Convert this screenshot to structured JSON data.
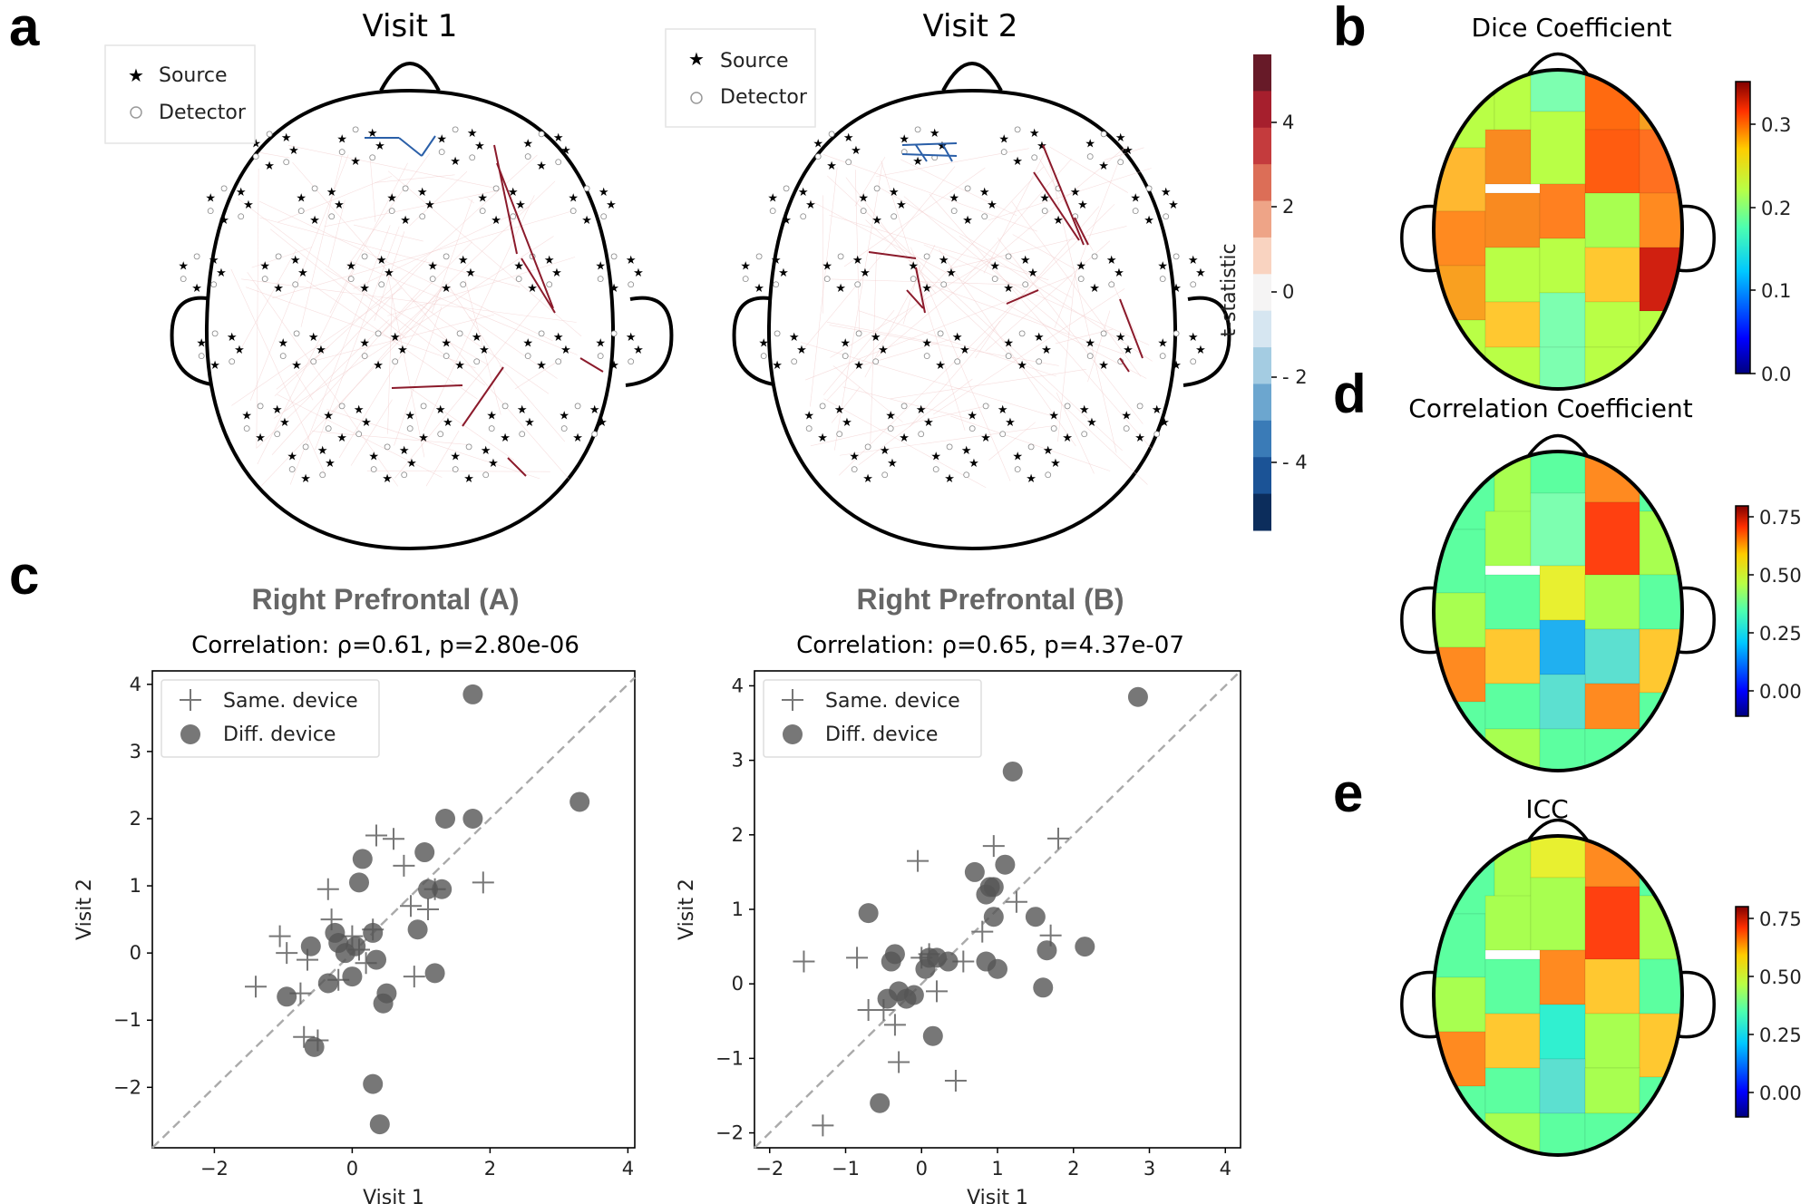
{
  "panels": {
    "a": {
      "letter": "a",
      "visit1_title": "Visit 1",
      "visit2_title": "Visit 2",
      "legend_source": "Source",
      "legend_detector": "Detector",
      "colorbar": {
        "label": "t-statistic",
        "ticks": [
          "4",
          "2",
          "0",
          "- 2",
          "- 4"
        ],
        "colors": [
          "#671a28",
          "#a61f2d",
          "#c43b3d",
          "#dc6e57",
          "#eea487",
          "#f9d3c0",
          "#f5f4f4",
          "#d6e6f1",
          "#a4cce2",
          "#6ca6cf",
          "#3a7bb7",
          "#1b5396",
          "#0c2d5c"
        ]
      }
    },
    "b": {
      "letter": "b",
      "title": "Dice Coefficient",
      "cb_ticks": [
        "0.3",
        "0.2",
        "0.1",
        "0.0"
      ]
    },
    "d": {
      "letter": "d",
      "title": "Correlation Coefficient",
      "cb_ticks": [
        "0.75",
        "0.50",
        "0.25",
        "0.00"
      ]
    },
    "e": {
      "letter": "e",
      "title": "ICC",
      "cb_ticks": [
        "0.75",
        "0.50",
        "0.25",
        "0.00"
      ]
    },
    "c": {
      "letter": "c",
      "legend_same": "Same. device",
      "legend_diff": "Diff. device"
    }
  },
  "chart_data": [
    {
      "type": "scatter",
      "id": "rpA",
      "title": "Right Prefrontal (A)",
      "subtitle": "Correlation: ρ=0.61, p=2.80e-06",
      "xlabel": "Visit 1",
      "ylabel": "Visit 2",
      "xlim": [
        -2.9,
        4.1
      ],
      "ylim": [
        -2.9,
        4.2
      ],
      "xticks": [
        "−2",
        "0",
        "2",
        "4"
      ],
      "yticks": [
        "−2",
        "−1",
        "0",
        "1",
        "2",
        "3",
        "4"
      ],
      "series": [
        {
          "name": "Same. device",
          "marker": "plus",
          "points": [
            [
              -1.4,
              -0.5
            ],
            [
              -1.05,
              0.25
            ],
            [
              -0.95,
              0.0
            ],
            [
              -0.65,
              -0.1
            ],
            [
              -0.75,
              -0.6
            ],
            [
              -0.7,
              -1.25
            ],
            [
              -0.5,
              -1.3
            ],
            [
              -0.35,
              0.95
            ],
            [
              -0.3,
              0.5
            ],
            [
              -0.2,
              -0.4
            ],
            [
              0.0,
              0.25
            ],
            [
              0.1,
              0.05
            ],
            [
              0.3,
              0.35
            ],
            [
              0.35,
              1.75
            ],
            [
              0.6,
              1.7
            ],
            [
              0.75,
              1.3
            ],
            [
              0.85,
              0.7
            ],
            [
              0.9,
              -0.35
            ],
            [
              1.1,
              0.65
            ],
            [
              1.2,
              0.95
            ],
            [
              1.9,
              1.05
            ],
            [
              0.2,
              -0.15
            ]
          ]
        },
        {
          "name": "Diff. device",
          "marker": "circle",
          "points": [
            [
              -0.95,
              -0.65
            ],
            [
              -0.6,
              0.1
            ],
            [
              -0.55,
              -1.4
            ],
            [
              -0.35,
              -0.45
            ],
            [
              -0.25,
              0.3
            ],
            [
              -0.2,
              0.15
            ],
            [
              -0.1,
              0.0
            ],
            [
              0.0,
              -0.35
            ],
            [
              0.05,
              0.1
            ],
            [
              0.1,
              1.05
            ],
            [
              0.15,
              1.4
            ],
            [
              0.3,
              0.3
            ],
            [
              0.35,
              -0.1
            ],
            [
              0.45,
              -0.75
            ],
            [
              0.5,
              -0.6
            ],
            [
              0.3,
              -1.95
            ],
            [
              0.4,
              -2.55
            ],
            [
              0.95,
              0.35
            ],
            [
              1.05,
              1.5
            ],
            [
              1.1,
              0.95
            ],
            [
              1.3,
              0.95
            ],
            [
              1.35,
              2.0
            ],
            [
              1.2,
              -0.3
            ],
            [
              1.75,
              3.85
            ],
            [
              1.75,
              2.0
            ],
            [
              3.3,
              2.25
            ]
          ]
        }
      ]
    },
    {
      "type": "scatter",
      "id": "rpB",
      "title": "Right Prefrontal (B)",
      "subtitle": "Correlation: ρ=0.65, p=4.37e-07",
      "xlabel": "Visit 1",
      "ylabel": "Visit 2",
      "xlim": [
        -2.2,
        4.2
      ],
      "ylim": [
        -2.2,
        4.2
      ],
      "xticks": [
        "−2",
        "−1",
        "0",
        "1",
        "2",
        "3",
        "4"
      ],
      "yticks": [
        "−2",
        "−1",
        "0",
        "1",
        "2",
        "3",
        "4"
      ],
      "series": [
        {
          "name": "Same. device",
          "marker": "plus",
          "points": [
            [
              -1.55,
              0.3
            ],
            [
              -1.3,
              -1.9
            ],
            [
              -0.85,
              0.35
            ],
            [
              -0.7,
              -0.35
            ],
            [
              -0.5,
              -0.35
            ],
            [
              -0.35,
              -0.55
            ],
            [
              -0.3,
              -1.05
            ],
            [
              -0.05,
              1.65
            ],
            [
              0.0,
              0.35
            ],
            [
              0.1,
              0.4
            ],
            [
              0.2,
              -0.1
            ],
            [
              0.45,
              -1.3
            ],
            [
              0.8,
              0.7
            ],
            [
              0.95,
              1.85
            ],
            [
              1.25,
              1.1
            ],
            [
              1.7,
              0.65
            ],
            [
              1.8,
              1.95
            ],
            [
              0.55,
              0.3
            ]
          ]
        },
        {
          "name": "Diff. device",
          "marker": "circle",
          "points": [
            [
              -0.7,
              0.95
            ],
            [
              -0.55,
              -1.6
            ],
            [
              -0.45,
              -0.2
            ],
            [
              -0.4,
              0.3
            ],
            [
              -0.35,
              0.4
            ],
            [
              -0.3,
              -0.1
            ],
            [
              -0.2,
              -0.2
            ],
            [
              -0.1,
              -0.15
            ],
            [
              0.05,
              0.2
            ],
            [
              0.1,
              0.35
            ],
            [
              0.15,
              -0.7
            ],
            [
              0.2,
              0.35
            ],
            [
              0.35,
              0.3
            ],
            [
              0.7,
              1.5
            ],
            [
              0.85,
              1.2
            ],
            [
              0.9,
              1.3
            ],
            [
              0.95,
              1.3
            ],
            [
              0.95,
              0.9
            ],
            [
              1.0,
              0.2
            ],
            [
              1.1,
              1.6
            ],
            [
              1.2,
              2.85
            ],
            [
              1.5,
              0.9
            ],
            [
              1.6,
              -0.05
            ],
            [
              1.65,
              0.45
            ],
            [
              2.15,
              0.5
            ],
            [
              2.85,
              3.85
            ],
            [
              0.85,
              0.3
            ]
          ]
        }
      ]
    }
  ]
}
